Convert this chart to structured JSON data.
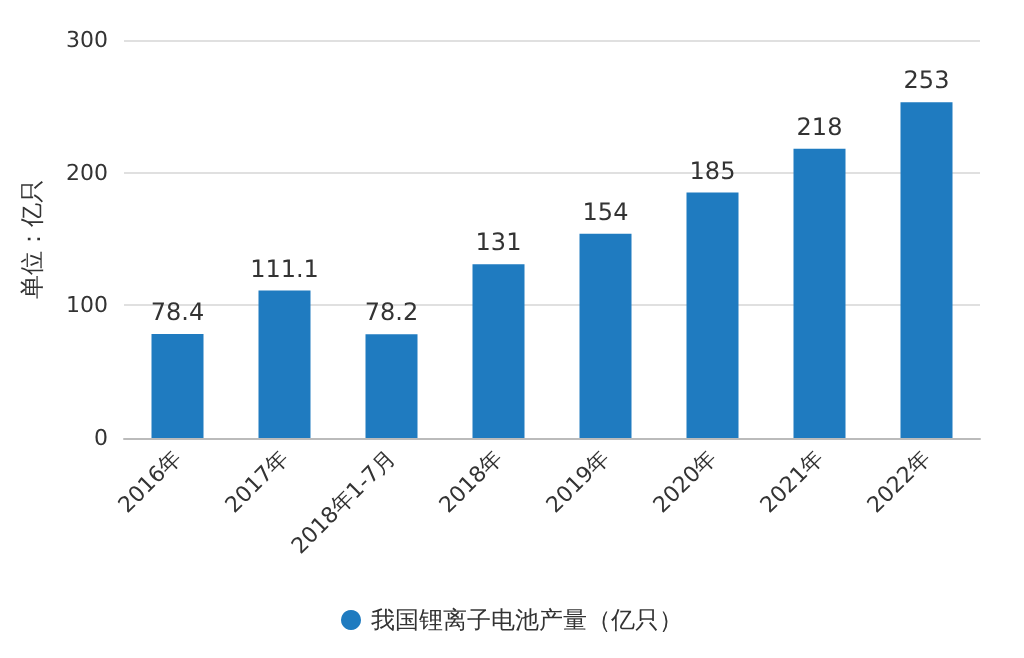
{
  "chart_data": {
    "type": "bar",
    "ylabel": "单位：亿只",
    "categories": [
      "2016年",
      "2017年",
      "2018年1-7月",
      "2018年",
      "2019年",
      "2020年",
      "2021年",
      "2022年"
    ],
    "series": [
      {
        "name": "我国锂离子电池产量（亿只）",
        "color": "#1f7bc0",
        "values": [
          78.4,
          111.1,
          78.2,
          131,
          154,
          185,
          218,
          253
        ]
      }
    ],
    "ylim": [
      0,
      300
    ],
    "yticks": [
      0,
      100,
      200,
      300
    ],
    "grid": "y",
    "legend": "bottom",
    "data_labels": true
  }
}
